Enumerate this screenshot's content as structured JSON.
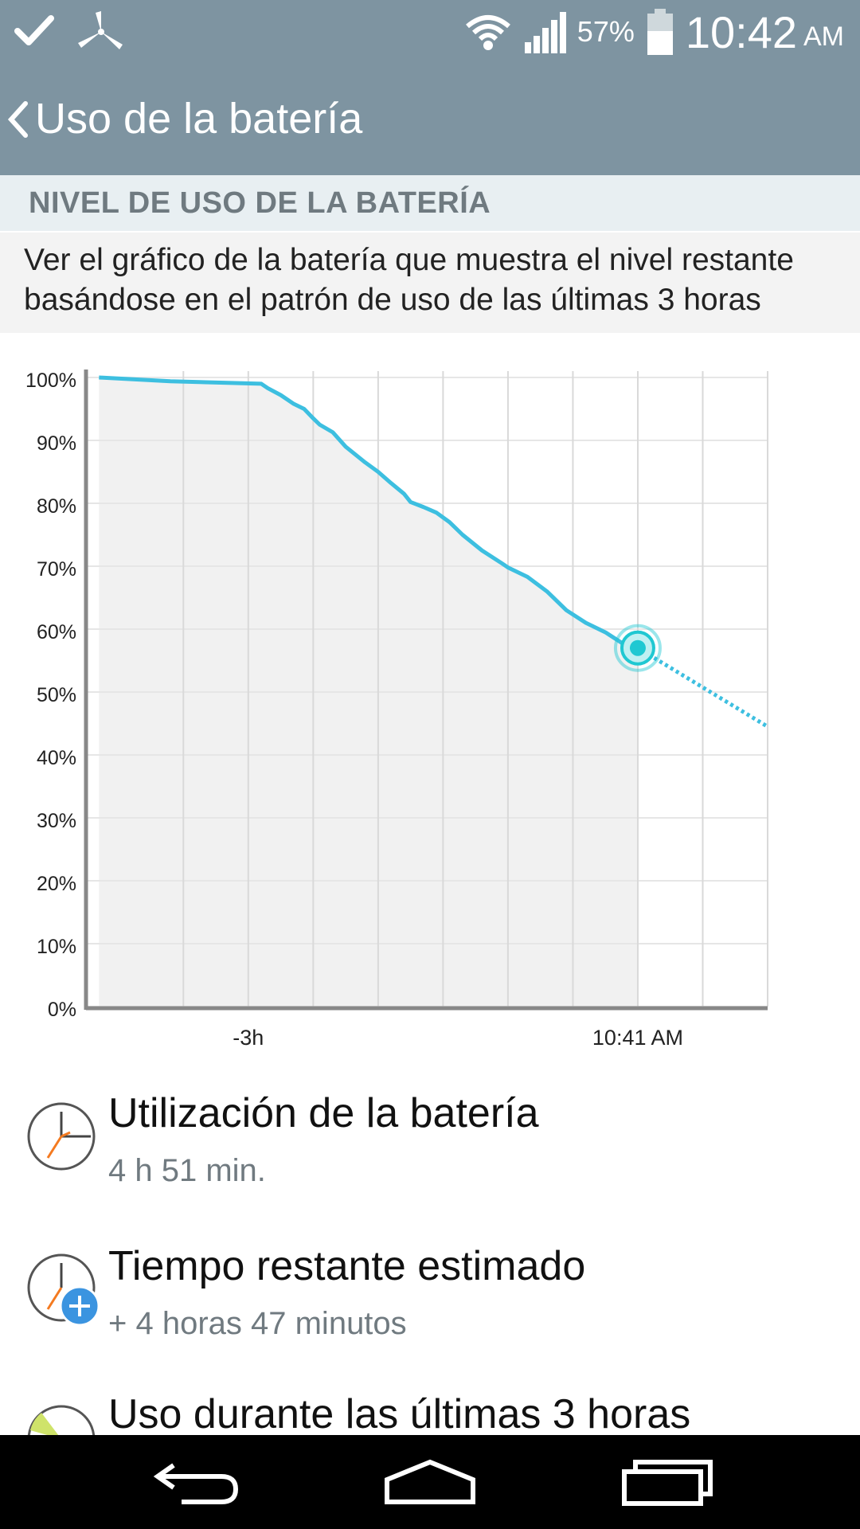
{
  "status_bar": {
    "battery_pct": "57%",
    "time": "10:42",
    "ampm": "AM",
    "icons": [
      "check-icon",
      "pinwheel-icon",
      "wifi-icon",
      "signal-icon",
      "battery-icon"
    ]
  },
  "header": {
    "title": "Uso de la batería"
  },
  "section": {
    "title": "NIVEL DE USO DE LA BATERÍA",
    "description": "Ver el gráfico de la batería que muestra el nivel restante basándose en el patrón de uso de las últimas 3 horas"
  },
  "chart_data": {
    "type": "line",
    "y_ticks": [
      "100%",
      "90%",
      "80%",
      "70%",
      "60%",
      "50%",
      "40%",
      "30%",
      "20%",
      "10%",
      "0%"
    ],
    "x_tick_labels": [
      {
        "label": "-3h",
        "x": -2
      },
      {
        "label": "10:41 AM",
        "x": 1
      }
    ],
    "xlim": [
      -3.25,
      2
    ],
    "ylim": [
      0,
      100
    ],
    "series": [
      {
        "kind": "history",
        "x": [
          -3.15,
          -2.6,
          -1.9,
          -1.85,
          -1.75,
          -1.65,
          -1.57,
          -1.5,
          -1.45,
          -1.35,
          -1.25,
          -1.1,
          -1.0,
          -0.9,
          -0.8,
          -0.75,
          -0.65,
          -0.55,
          -0.45,
          -0.35,
          -0.2,
          -0.05,
          0.0,
          0.15,
          0.3,
          0.45,
          0.6,
          0.75,
          0.9,
          1.0
        ],
        "y": [
          100,
          99.4,
          99,
          98.3,
          97.2,
          95.8,
          95,
          93.5,
          92.5,
          91.3,
          89,
          86.5,
          85,
          83.2,
          81.5,
          80.2,
          79.4,
          78.5,
          77,
          75,
          72.5,
          70.5,
          69.8,
          68.3,
          66,
          63,
          61,
          59.5,
          57.5,
          57
        ]
      },
      {
        "kind": "projection",
        "x": [
          1,
          2
        ],
        "y": [
          57,
          44.5
        ]
      }
    ],
    "current_point": {
      "x": 1,
      "y": 57
    },
    "colors": {
      "line": "#3dbfe0",
      "fill": "#f1f1f1",
      "grid": "#d9d9d9",
      "axis": "#888888",
      "marker": "#1fc8d2"
    }
  },
  "items": [
    {
      "title": "Utilización de la batería",
      "subtitle": "4 h 51 min.",
      "icon": "clock-icon"
    },
    {
      "title": "Tiempo restante estimado",
      "subtitle": "+ 4 horas 47 minutos",
      "icon": "clock-plus-icon"
    },
    {
      "title": "Uso durante las últimas 3 horas",
      "subtitle": "",
      "icon": "pie-icon"
    }
  ],
  "nav": {
    "buttons": [
      "back-icon",
      "home-icon",
      "recent-apps-icon"
    ]
  }
}
